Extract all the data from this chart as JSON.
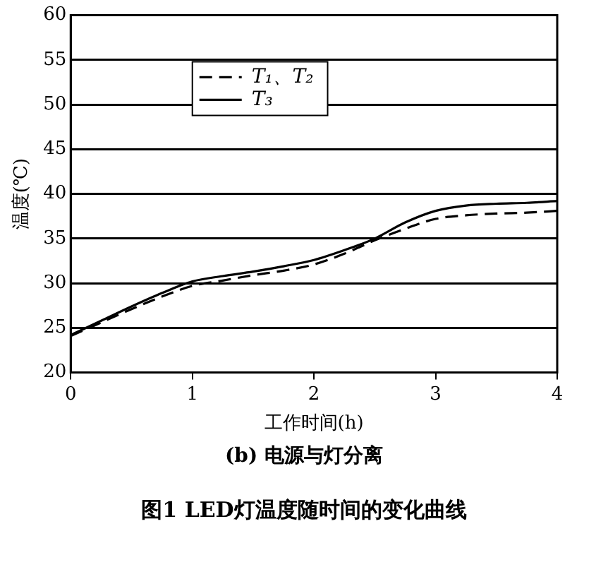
{
  "chart_data": {
    "type": "line",
    "title": "图1  LED灯温度随时间的变化曲线",
    "subtitle": "(b) 电源与灯分离",
    "xlabel": "工作时间(h)",
    "ylabel": "温度(℃)",
    "x": [
      0,
      0.25,
      0.5,
      0.75,
      1,
      1.25,
      1.5,
      1.75,
      2,
      2.25,
      2.5,
      2.75,
      3,
      3.25,
      3.5,
      3.75,
      4
    ],
    "series": [
      {
        "name": "T₁、T₂",
        "color": "#000000",
        "line_style": "dashed",
        "values": [
          24.1,
          25.6,
          27.1,
          28.5,
          29.7,
          30.3,
          30.9,
          31.4,
          32.1,
          33.3,
          34.8,
          36.1,
          37.2,
          37.6,
          37.8,
          37.9,
          38.1
        ]
      },
      {
        "name": "T₃",
        "color": "#000000",
        "line_style": "solid",
        "values": [
          24.2,
          25.8,
          27.4,
          28.9,
          30.2,
          30.8,
          31.3,
          31.9,
          32.6,
          33.7,
          35.0,
          36.8,
          38.1,
          38.7,
          38.9,
          39.0,
          39.2
        ]
      }
    ],
    "xlim": [
      0,
      4
    ],
    "xticks": [
      0,
      1,
      2,
      3,
      4
    ],
    "ylim": [
      20,
      60
    ],
    "yticks": [
      20,
      25,
      30,
      35,
      40,
      45,
      50,
      55,
      60
    ],
    "grid": "y",
    "legend": "top left",
    "marker": "none"
  }
}
